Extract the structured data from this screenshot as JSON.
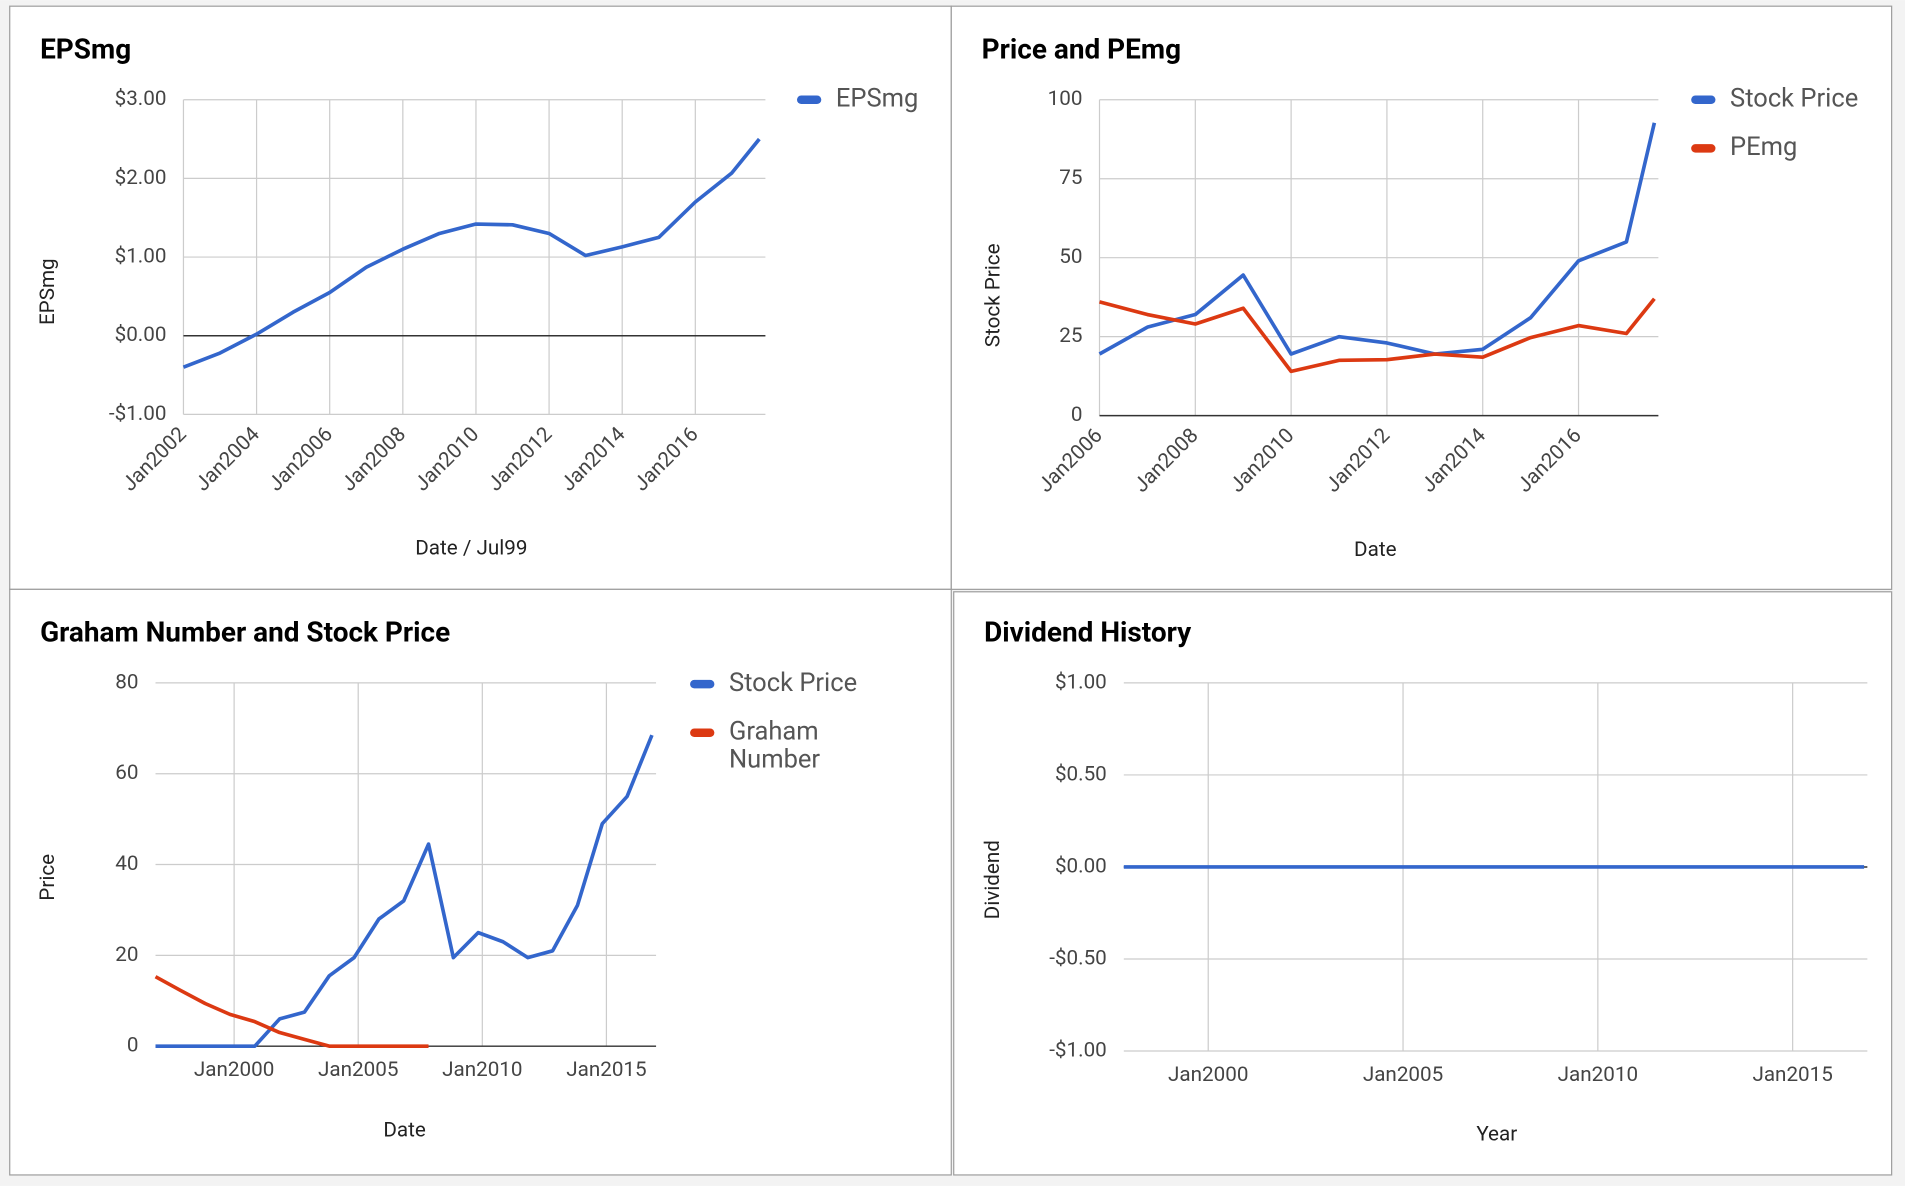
{
  "chart_data": [
    {
      "type": "line",
      "title": "EPSmg",
      "x_label": "Date / Jul99",
      "y_label": "EPSmg",
      "x": [
        "2002-01",
        "2003-01",
        "2004-01",
        "2005-01",
        "2006-01",
        "2007-01",
        "2008-01",
        "2009-01",
        "2010-01",
        "2011-01",
        "2012-01",
        "2013-01",
        "2014-01",
        "2015-01",
        "2016-01",
        "2017-01",
        "2017-10"
      ],
      "series": [
        {
          "name": "EPSmg",
          "color": "#3366cc",
          "values": [
            -0.4,
            -0.22,
            0.02,
            0.3,
            0.55,
            0.87,
            1.1,
            1.3,
            1.42,
            1.41,
            1.3,
            1.02,
            1.13,
            1.25,
            1.7,
            2.07,
            2.5
          ]
        }
      ],
      "xlim": [
        "2002-01",
        "2017-12"
      ],
      "xticks": [
        {
          "value": "2002-01",
          "label": "Jan2002"
        },
        {
          "value": "2004-01",
          "label": "Jan2004"
        },
        {
          "value": "2006-01",
          "label": "Jan2006"
        },
        {
          "value": "2008-01",
          "label": "Jan2008"
        },
        {
          "value": "2010-01",
          "label": "Jan2010"
        },
        {
          "value": "2012-01",
          "label": "Jan2012"
        },
        {
          "value": "2014-01",
          "label": "Jan2014"
        },
        {
          "value": "2016-01",
          "label": "Jan2016"
        }
      ],
      "ylim": [
        -1,
        3
      ],
      "yticks": [
        {
          "value": -1,
          "label": "-$1.00"
        },
        {
          "value": 0,
          "label": "$0.00"
        },
        {
          "value": 1,
          "label": "$1.00"
        },
        {
          "value": 2,
          "label": "$2.00"
        },
        {
          "value": 3,
          "label": "$3.00"
        }
      ],
      "grid": true,
      "legend": "right"
    },
    {
      "type": "line",
      "title": "Price and PEmg",
      "x_label": "Date",
      "y_label": "Stock Price",
      "x": [
        "2006-01",
        "2007-01",
        "2008-01",
        "2009-01",
        "2010-01",
        "2011-01",
        "2012-01",
        "2013-01",
        "2014-01",
        "2015-01",
        "2016-01",
        "2017-01",
        "2017-08"
      ],
      "series": [
        {
          "name": "Stock Price",
          "color": "#3366cc",
          "values": [
            19.5,
            28,
            32,
            44.5,
            19.5,
            25,
            23,
            19.5,
            21,
            31,
            49,
            55,
            92.7
          ]
        },
        {
          "name": "PEmg",
          "color": "#dc3912",
          "values": [
            36,
            32,
            29,
            34,
            14,
            17.5,
            17.7,
            19.5,
            18.5,
            24.7,
            28.5,
            26,
            37
          ]
        }
      ],
      "xlim": [
        "2006-01",
        "2017-09"
      ],
      "xticks": [
        {
          "value": "2006-01",
          "label": "Jan2006"
        },
        {
          "value": "2008-01",
          "label": "Jan2008"
        },
        {
          "value": "2010-01",
          "label": "Jan2010"
        },
        {
          "value": "2012-01",
          "label": "Jan2012"
        },
        {
          "value": "2014-01",
          "label": "Jan2014"
        },
        {
          "value": "2016-01",
          "label": "Jan2016"
        }
      ],
      "ylim": [
        0,
        100
      ],
      "yticks": [
        0,
        25,
        50,
        75,
        100
      ],
      "grid": true,
      "legend": "right"
    },
    {
      "type": "line",
      "title": "Graham Number and Stock Price",
      "x_label": "Date",
      "y_label": "Price",
      "x": [
        "1996-11",
        "1997-11",
        "1998-11",
        "1999-11",
        "2000-11",
        "2001-11",
        "2002-11",
        "2003-11",
        "2004-11",
        "2005-11",
        "2006-11",
        "2007-11",
        "2008-11",
        "2009-11",
        "2010-11",
        "2011-11",
        "2012-11",
        "2013-11",
        "2014-11",
        "2015-11",
        "2016-11"
      ],
      "series": [
        {
          "name": "Stock Price",
          "color": "#3366cc",
          "values": [
            0,
            0,
            0,
            0,
            0,
            6,
            7.5,
            15.5,
            19.5,
            28,
            32,
            44.5,
            19.5,
            25,
            23,
            19.5,
            21,
            31,
            49,
            55,
            68.5
          ]
        },
        {
          "name": "Graham Number",
          "color": "#dc3912",
          "values": [
            15.3,
            12.3,
            9.4,
            7,
            5.4,
            3,
            1.5,
            0,
            0,
            0,
            0,
            0,
            null,
            null,
            null,
            null,
            null,
            null,
            null,
            null,
            null
          ]
        }
      ],
      "xlim": [
        "1996-11",
        "2017-01"
      ],
      "xticks": [
        {
          "value": "2000-01",
          "label": "Jan2000"
        },
        {
          "value": "2005-01",
          "label": "Jan2005"
        },
        {
          "value": "2010-01",
          "label": "Jan2010"
        },
        {
          "value": "2015-01",
          "label": "Jan2015"
        }
      ],
      "ylim": [
        0,
        80
      ],
      "yticks": [
        0,
        20,
        40,
        60,
        80
      ],
      "grid": true,
      "legend": "right"
    },
    {
      "type": "line",
      "title": "Dividend History",
      "x_label": "Year",
      "y_label": "Dividend",
      "x": [
        "1997-11",
        "1998-11",
        "1999-11",
        "2000-11",
        "2001-11",
        "2002-11",
        "2003-11",
        "2004-11",
        "2005-11",
        "2006-11",
        "2007-11",
        "2008-11",
        "2009-11",
        "2010-11",
        "2011-11",
        "2012-11",
        "2013-11",
        "2014-11",
        "2015-11",
        "2016-11"
      ],
      "series": [
        {
          "color": "#3366cc",
          "values": [
            0,
            0,
            0,
            0,
            0,
            0,
            0,
            0,
            0,
            0,
            0,
            0,
            0,
            0,
            0,
            0,
            0,
            0,
            0,
            0
          ]
        }
      ],
      "xlim": [
        "1997-11",
        "2016-12"
      ],
      "xticks": [
        {
          "value": "2000-01",
          "label": "Jan2000"
        },
        {
          "value": "2005-01",
          "label": "Jan2005"
        },
        {
          "value": "2010-01",
          "label": "Jan2010"
        },
        {
          "value": "2015-01",
          "label": "Jan2015"
        }
      ],
      "ylim": [
        -1,
        1
      ],
      "yticks": [
        {
          "value": -1,
          "label": "-$1.00"
        },
        {
          "value": -0.5,
          "label": "-$0.50"
        },
        {
          "value": 0,
          "label": "$0.00"
        },
        {
          "value": 0.5,
          "label": "$0.50"
        },
        {
          "value": 1,
          "label": "$1.00"
        }
      ],
      "grid": true
    }
  ]
}
